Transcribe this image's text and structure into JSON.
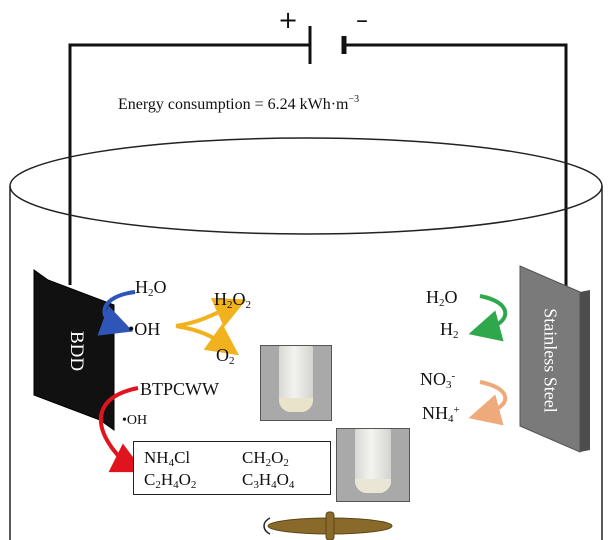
{
  "battery": {
    "plus": "+",
    "minus": "–"
  },
  "energy_label": "Energy consumption = 6.24 kWh·m",
  "energy_exponent": "−3",
  "anode": {
    "label": "BDD"
  },
  "cathode": {
    "label": "Stainless Steel"
  },
  "anode_reactions": {
    "h2o": "H",
    "h2o_sub": "2",
    "h2o_end": "O",
    "oh": "•OH",
    "h2o2": "H",
    "h2o2_sub1": "2",
    "h2o2_mid": "O",
    "h2o2_sub2": "2",
    "o2": "O",
    "o2_sub": "2",
    "btpcww": "BTPCWW",
    "oh_small": "•OH"
  },
  "products": [
    {
      "a": "NH",
      "a_sub": "4",
      "b": "Cl"
    },
    {
      "a": "CH",
      "a_sub": "2",
      "b": "O",
      "b_sub": "2"
    },
    {
      "a": "C",
      "a_sub": "2",
      "b": "H",
      "b_sub": "4",
      "c": "O",
      "c_sub": "2"
    },
    {
      "a": "C",
      "a_sub": "3",
      "b": "H",
      "b_sub": "4",
      "c": "O",
      "c_sub": "4"
    }
  ],
  "cathode_reactions": {
    "h2o": "H",
    "h2o_sub": "2",
    "h2o_end": "O",
    "h2": "H",
    "h2_sub": "2",
    "no3": "NO",
    "no3_sub": "3",
    "no3_sup": "-",
    "nh4": "NH",
    "nh4_sub": "4",
    "nh4_sup": "+"
  },
  "colors": {
    "anode": "#111111",
    "cathode": "#7a7a7a",
    "blue_arrow": "#2f55b8",
    "orange_arrow": "#f2b21e",
    "red_arrow": "#e0141e",
    "green_arrow": "#2ea84a",
    "salmon_arrow": "#efaa7c",
    "stirrer": "#8a6a2a"
  },
  "icons": [
    "battery-icon",
    "stir-bar-icon",
    "vial-photo-icon"
  ]
}
